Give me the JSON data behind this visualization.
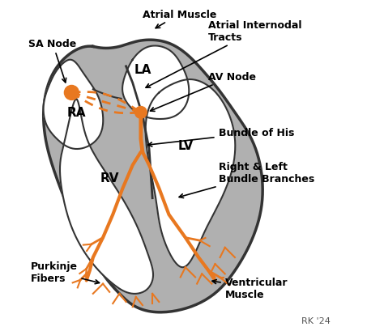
{
  "background_color": "#ffffff",
  "heart_fill": "#b0b0b0",
  "heart_outline": "#333333",
  "orange_color": "#e87820",
  "orange_dashed": "#e87820",
  "text_color": "#000000",
  "label_fontsize": 9,
  "chamber_fontsize": 11,
  "annotation_fontsize": 9,
  "watermark": "RK '24",
  "labels": {
    "SA_Node": "SA Node",
    "RA": "RA",
    "LA": "LA",
    "RV": "RV",
    "LV": "LV",
    "AV_Node": "AV Node",
    "Atrial_Muscle": "Atrial Muscle",
    "Atrial_Internodal": "Atrial Internodal\nTracts",
    "Bundle_His": "Bundle of His",
    "Right_Left_Bundle": "Right & Left\nBundle Branches",
    "Purkinje": "Purkinje\nFibers",
    "Ventricular_Muscle": "Ventricular\nMuscle"
  }
}
